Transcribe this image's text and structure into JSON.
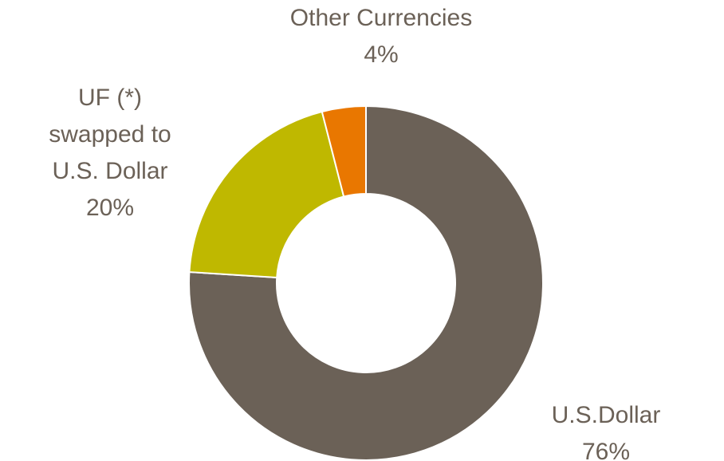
{
  "chart_data": {
    "type": "donut",
    "categories": [
      "U.S.Dollar",
      "UF (*)\nswapped to\nU.S. Dollar",
      "Other Currencies"
    ],
    "values": [
      76,
      20,
      4
    ],
    "value_labels": [
      "76%",
      "20%",
      "4%"
    ],
    "colors": [
      "#6b6157",
      "#bfb800",
      "#e97700"
    ]
  }
}
